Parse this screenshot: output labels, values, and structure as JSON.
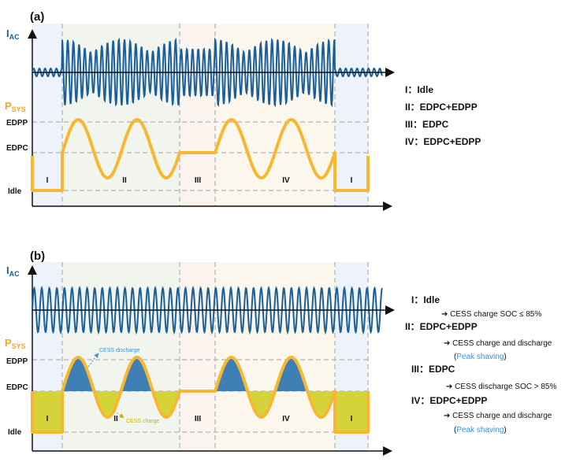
{
  "colors": {
    "current": "#1a5e9a",
    "power": "#f7b731",
    "discharge_fill": "#3f7fb5",
    "charge_fill": "#d4d43a",
    "divider": "#bdbdbd",
    "peak_shaving": "#3d8fd0"
  },
  "panel_a": {
    "label": "(a)",
    "iac_main": "I",
    "iac_sub": "AC",
    "psys_main": "P",
    "psys_sub": "SYS",
    "levels": {
      "edpp": "EDPP",
      "edpc": "EDPC",
      "idle": "Idle"
    },
    "phases": [
      "I",
      "II",
      "III",
      "IV",
      "I"
    ],
    "legend": [
      "I：Idle",
      "II：EDPC+EDPP",
      "III：EDPC",
      "IV：EDPC+EDPP"
    ]
  },
  "panel_b": {
    "label": "(b)",
    "iac_main": "I",
    "iac_sub": "AC",
    "psys_main": "P",
    "psys_sub": "SYS",
    "levels": {
      "edpp": "EDPP",
      "edpc": "EDPC",
      "idle": "Idle"
    },
    "phases": [
      "I",
      "II",
      "III",
      "IV",
      "I"
    ],
    "discharge_label": "CESS discharge",
    "charge_label": "CESS charge",
    "legend": [
      {
        "title": "I：Idle",
        "note": "➔ CESS charge SOC ≤ 85%",
        "extra": ""
      },
      {
        "title": "II：EDPC+EDPP",
        "note": "➔ CESS charge and discharge",
        "extra": "Peak shaving"
      },
      {
        "title": "III：EDPC",
        "note": "➔ CESS discharge SOC > 85%",
        "extra": ""
      },
      {
        "title": "IV：EDPC+EDPP",
        "note": "➔ CESS charge and discharge",
        "extra": "Peak shaving"
      }
    ]
  }
}
